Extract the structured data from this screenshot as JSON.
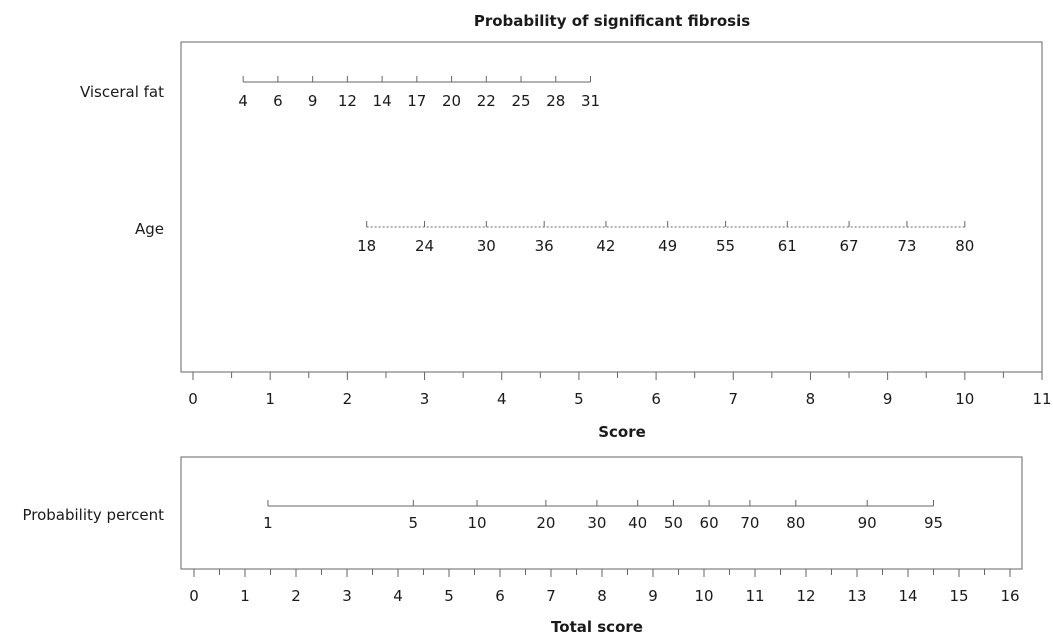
{
  "chart_data": {
    "type": "nomogram",
    "title": "Probability of significant fibrosis",
    "score_axis": {
      "label": "Score",
      "range": [
        0,
        11
      ],
      "ticks": [
        0,
        1,
        2,
        3,
        4,
        5,
        6,
        7,
        8,
        9,
        10,
        11
      ]
    },
    "variables": [
      {
        "name": "Visceral fat",
        "line_style": "solid",
        "ticks": [
          {
            "label": "4",
            "score": 0.65
          },
          {
            "label": "6",
            "score": 1.1
          },
          {
            "label": "9",
            "score": 1.55
          },
          {
            "label": "12",
            "score": 2.0
          },
          {
            "label": "14",
            "score": 2.45
          },
          {
            "label": "17",
            "score": 2.9
          },
          {
            "label": "20",
            "score": 3.35
          },
          {
            "label": "22",
            "score": 3.8
          },
          {
            "label": "25",
            "score": 4.25
          },
          {
            "label": "28",
            "score": 4.7
          },
          {
            "label": "31",
            "score": 5.15
          }
        ]
      },
      {
        "name": "Age",
        "line_style": "dotted",
        "ticks": [
          {
            "label": "18",
            "score": 2.25
          },
          {
            "label": "24",
            "score": 3.0
          },
          {
            "label": "30",
            "score": 3.8
          },
          {
            "label": "36",
            "score": 4.55
          },
          {
            "label": "42",
            "score": 5.35
          },
          {
            "label": "49",
            "score": 6.15
          },
          {
            "label": "55",
            "score": 6.9
          },
          {
            "label": "61",
            "score": 7.7
          },
          {
            "label": "67",
            "score": 8.5
          },
          {
            "label": "73",
            "score": 9.25
          },
          {
            "label": "80",
            "score": 10.0
          }
        ]
      }
    ],
    "total_axis": {
      "label": "Total score",
      "range": [
        0,
        16
      ],
      "ticks": [
        0,
        1,
        2,
        3,
        4,
        5,
        6,
        7,
        8,
        9,
        10,
        11,
        12,
        13,
        14,
        15,
        16
      ]
    },
    "probability": {
      "name": "Probability percent",
      "ticks": [
        {
          "label": "1",
          "total": 1.45
        },
        {
          "label": "5",
          "total": 4.3
        },
        {
          "label": "10",
          "total": 5.55
        },
        {
          "label": "20",
          "total": 6.9
        },
        {
          "label": "30",
          "total": 7.9
        },
        {
          "label": "40",
          "total": 8.7
        },
        {
          "label": "50",
          "total": 9.4
        },
        {
          "label": "60",
          "total": 10.1
        },
        {
          "label": "70",
          "total": 10.9
        },
        {
          "label": "80",
          "total": 11.8
        },
        {
          "label": "90",
          "total": 13.2
        },
        {
          "label": "95",
          "total": 14.5
        }
      ]
    }
  }
}
